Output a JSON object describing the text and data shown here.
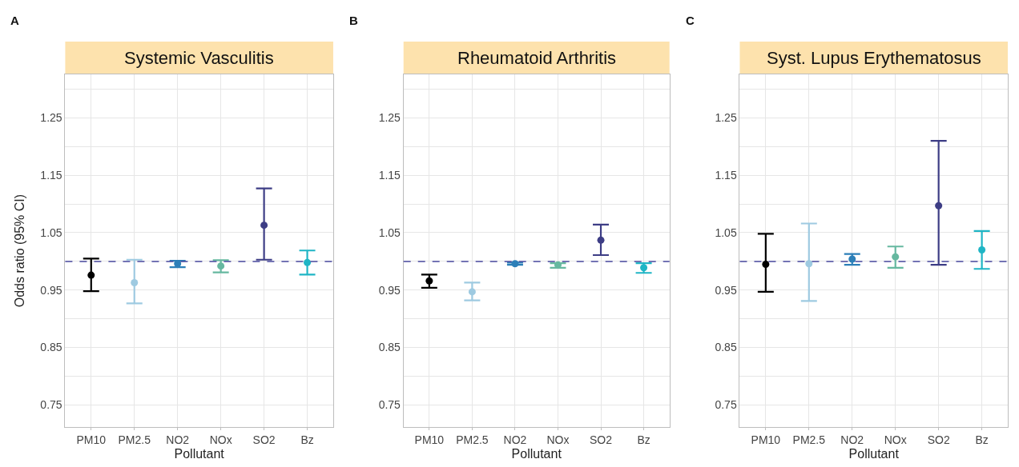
{
  "chart_data": [
    {
      "type": "scatter",
      "title": "Systemic Vasculitis",
      "annotations": [
        "A"
      ],
      "xlabel": "Pollutant",
      "ylabel": "Odds ratio (95% CI)",
      "categories": [
        "PM10",
        "PM2.5",
        "NO2",
        "NOx",
        "SO2",
        "Bz"
      ],
      "values": [
        0.976,
        0.963,
        0.996,
        0.992,
        1.063,
        0.998
      ],
      "errors": [
        [
          0.948,
          1.005
        ],
        [
          0.927,
          1.003
        ],
        [
          0.99,
          1.001
        ],
        [
          0.981,
          1.002
        ],
        [
          1.003,
          1.127
        ],
        [
          0.977,
          1.019
        ]
      ],
      "colors": [
        "#000000",
        "#9ecae1",
        "#2c7fb8",
        "#66b8a0",
        "#3d3d85",
        "#1fb5c5"
      ],
      "marker": "circle",
      "ylim": [
        0.711,
        1.326
      ],
      "yticks": [
        0.75,
        {
          "value": 0.8,
          "label": null
        },
        0.85,
        {
          "value": 0.9,
          "label": null
        },
        0.95,
        {
          "value": 1.0,
          "label": null
        },
        1.05,
        {
          "value": 1.1,
          "label": null
        },
        1.15,
        {
          "value": 1.2,
          "label": null
        },
        1.25,
        {
          "value": 1.3,
          "label": null
        }
      ],
      "grid": true,
      "ref_lines": [
        {
          "axis": "y",
          "value": 1.0,
          "color": "#4a4aa0",
          "line_style": "dashed"
        }
      ]
    },
    {
      "type": "scatter",
      "title": "Rheumatoid Arthritis",
      "annotations": [
        "B"
      ],
      "xlabel": "Pollutant",
      "categories": [
        "PM10",
        "PM2.5",
        "NO2",
        "NOx",
        "SO2",
        "Bz"
      ],
      "values": [
        0.966,
        0.947,
        0.996,
        0.994,
        1.037,
        0.989
      ],
      "errors": [
        [
          0.954,
          0.977
        ],
        [
          0.932,
          0.963
        ],
        [
          0.994,
          0.998
        ],
        [
          0.989,
          0.997
        ],
        [
          1.011,
          1.064
        ],
        [
          0.98,
          0.997
        ]
      ],
      "colors": [
        "#000000",
        "#9ecae1",
        "#2c7fb8",
        "#66b8a0",
        "#3d3d85",
        "#1fb5c5"
      ],
      "marker": "circle",
      "ylim": [
        0.711,
        1.326
      ],
      "yticks": [
        0.75,
        {
          "value": 0.8,
          "label": null
        },
        0.85,
        {
          "value": 0.9,
          "label": null
        },
        0.95,
        {
          "value": 1.0,
          "label": null
        },
        1.05,
        {
          "value": 1.1,
          "label": null
        },
        1.15,
        {
          "value": 1.2,
          "label": null
        },
        1.25,
        {
          "value": 1.3,
          "label": null
        }
      ],
      "grid": true,
      "ref_lines": [
        {
          "axis": "y",
          "value": 1.0,
          "color": "#4a4aa0",
          "line_style": "dashed"
        }
      ]
    },
    {
      "type": "scatter",
      "title": "Syst. Lupus Erythematosus",
      "annotations": [
        "C"
      ],
      "xlabel": "Pollutant",
      "categories": [
        "PM10",
        "PM2.5",
        "NO2",
        "NOx",
        "SO2",
        "Bz"
      ],
      "values": [
        0.995,
        0.996,
        1.004,
        1.008,
        1.097,
        1.02
      ],
      "errors": [
        [
          0.947,
          1.048
        ],
        [
          0.931,
          1.066
        ],
        [
          0.994,
          1.013
        ],
        [
          0.989,
          1.026
        ],
        [
          0.994,
          1.21
        ],
        [
          0.987,
          1.053
        ]
      ],
      "colors": [
        "#000000",
        "#9ecae1",
        "#2c7fb8",
        "#66b8a0",
        "#3d3d85",
        "#1fb5c5"
      ],
      "marker": "circle",
      "ylim": [
        0.711,
        1.326
      ],
      "yticks": [
        0.75,
        {
          "value": 0.8,
          "label": null
        },
        0.85,
        {
          "value": 0.9,
          "label": null
        },
        0.95,
        {
          "value": 1.0,
          "label": null
        },
        1.05,
        {
          "value": 1.1,
          "label": null
        },
        1.15,
        {
          "value": 1.2,
          "label": null
        },
        1.25,
        {
          "value": 1.3,
          "label": null
        }
      ],
      "grid": true,
      "ref_lines": [
        {
          "axis": "y",
          "value": 1.0,
          "color": "#4a4aa0",
          "line_style": "dashed"
        }
      ]
    }
  ]
}
